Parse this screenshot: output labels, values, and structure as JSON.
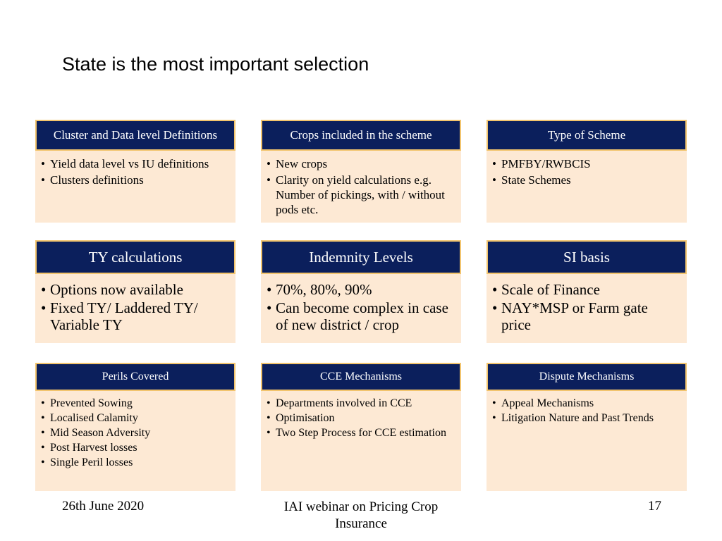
{
  "slide": {
    "title": "State is the most important selection",
    "footer": {
      "date": "26th June 2020",
      "event_line1": "IAI webinar on Pricing Crop",
      "event_line2": "Insurance",
      "page_number": "17"
    }
  },
  "cards": {
    "cluster": {
      "title": "Cluster and Data level Definitions",
      "items": [
        "Yield data level vs IU definitions",
        " Clusters definitions"
      ]
    },
    "crops": {
      "title": "Crops included in the scheme",
      "items": [
        "New crops",
        "Clarity on yield calculations e.g. Number of pickings, with / without pods etc."
      ]
    },
    "scheme": {
      "title": "Type of Scheme",
      "items": [
        "PMFBY/RWBCIS",
        "State Schemes"
      ]
    },
    "ty": {
      "title": "TY calculations",
      "items": [
        "Options now available",
        "Fixed TY/ Laddered TY/ Variable TY"
      ]
    },
    "indemnity": {
      "title": "Indemnity Levels",
      "items": [
        " 70%, 80%, 90%",
        " Can become complex in case of new district / crop"
      ]
    },
    "si": {
      "title": "SI basis",
      "items": [
        "Scale of Finance",
        "NAY*MSP or Farm gate price"
      ]
    },
    "perils": {
      "title": "Perils Covered",
      "items": [
        "Prevented Sowing",
        "Localised Calamity",
        "Mid Season Adversity",
        "Post Harvest losses",
        "Single Peril losses"
      ]
    },
    "cce": {
      "title": "CCE Mechanisms",
      "items": [
        "Departments involved in CCE",
        "Optimisation",
        "Two Step Process for CCE estimation"
      ]
    },
    "dispute": {
      "title": "Dispute Mechanisms",
      "items": [
        "Appeal Mechanisms",
        "Litigation Nature and Past Trends"
      ]
    }
  },
  "colors": {
    "header_bg": "#0b1f5c",
    "header_border": "#f2c46d",
    "card_bg": "#fde9d4"
  }
}
